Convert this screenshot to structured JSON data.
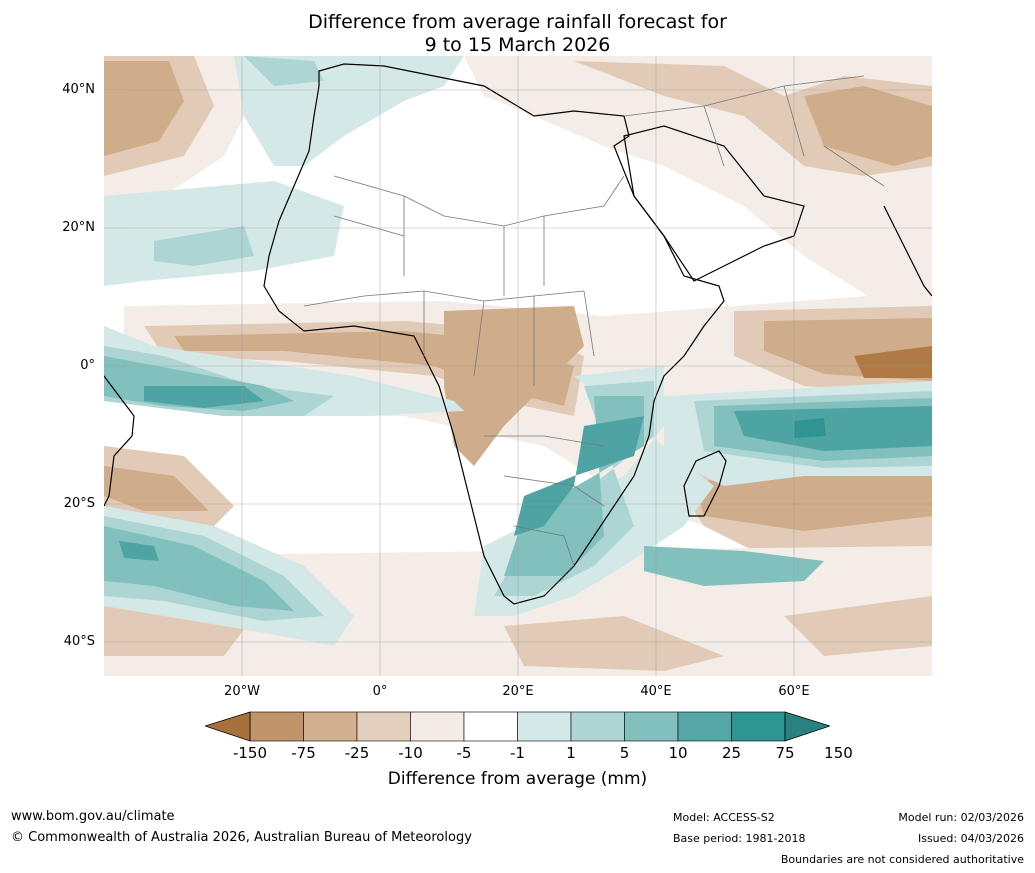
{
  "title": {
    "line1": "Difference from average rainfall forecast for",
    "line2": "9 to 15 March 2026"
  },
  "axes": {
    "lat_labels": [
      "40°N",
      "20°N",
      "0°",
      "20°S",
      "40°S"
    ],
    "lon_labels": [
      "20°W",
      "0°",
      "20°E",
      "40°E",
      "60°E"
    ]
  },
  "colorbar": {
    "label": "Difference from average (mm)",
    "ticks": [
      "-150",
      "-75",
      "-25",
      "-10",
      "-5",
      "-1",
      "1",
      "5",
      "10",
      "25",
      "75",
      "150"
    ],
    "colors": [
      "#a8703a",
      "#c0936a",
      "#d2b08f",
      "#e3cfbd",
      "#f3ebe5",
      "#ffffff",
      "#d4e9e7",
      "#acd5d3",
      "#82c0be",
      "#56a8a7",
      "#2e9592",
      "#2a8280"
    ]
  },
  "palette": {
    "brown_strong": "#b07a47",
    "brown_mid": "#cfac8a",
    "brown_light": "#e2cbb6",
    "brown_faint": "#f4ece6",
    "teal_faint": "#d4e9e7",
    "teal_light": "#acd5d3",
    "teal_mid": "#82c0be",
    "teal_strong": "#4ea4a3",
    "teal_dark": "#2e9592"
  },
  "footer": {
    "url": "www.bom.gov.au/climate",
    "copyright": "© Commonwealth of Australia 2026, Australian Bureau of Meteorology",
    "model": "Model: ACCESS-S2",
    "base_period": "Base period: 1981-2018",
    "model_run": "Model run: 02/03/2026",
    "issued": "Issued: 04/03/2026",
    "disclaimer": "Boundaries are not considered authoritative"
  }
}
